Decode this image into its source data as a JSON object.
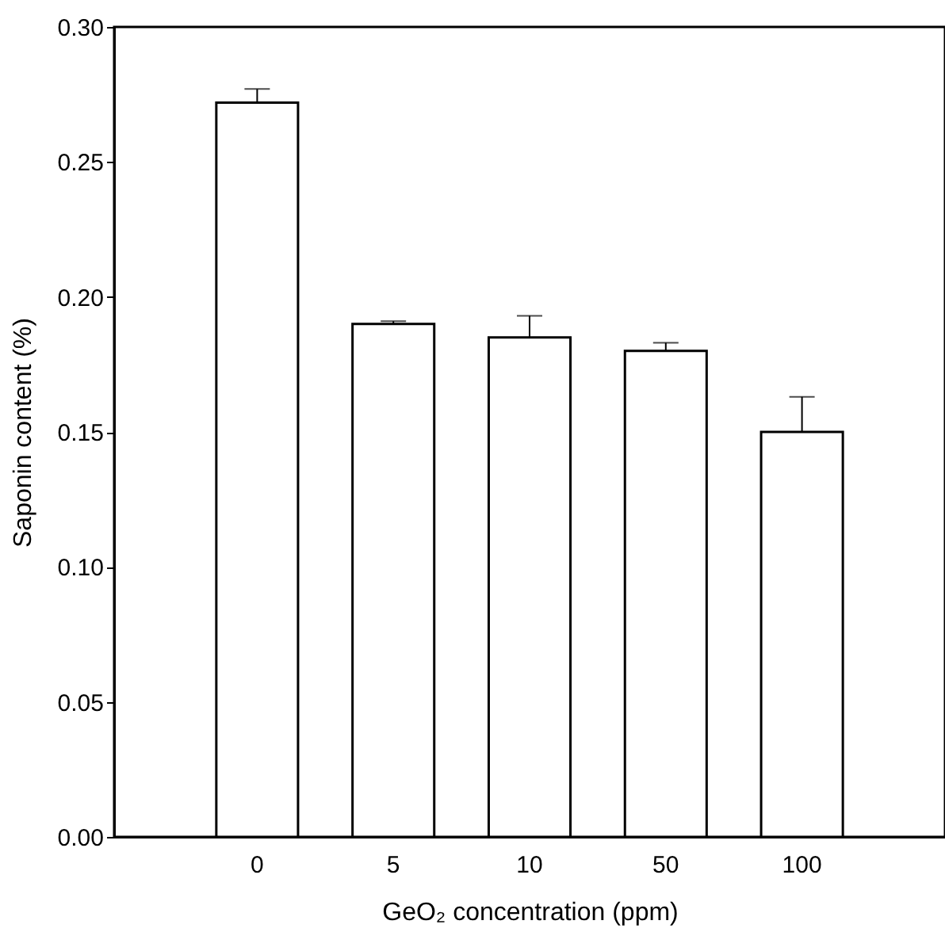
{
  "chart_data": {
    "type": "bar",
    "xlabel": "GeO₂ concentration (ppm)",
    "ylabel": "Saponin content (%)",
    "categories": [
      "0",
      "5",
      "10",
      "50",
      "100"
    ],
    "values": [
      0.272,
      0.19,
      0.185,
      0.18,
      0.15
    ],
    "errors": [
      0.005,
      0.001,
      0.008,
      0.003,
      0.013
    ],
    "color": "#ffffff",
    "ylim": [
      0,
      0.3
    ],
    "yticks": [
      {
        "value": 0,
        "label": "0.00"
      },
      0.05,
      {
        "value": 0.1,
        "label": "0.10"
      },
      0.15,
      {
        "value": 0.2,
        "label": "0.20"
      },
      0.25,
      {
        "value": 0.3,
        "label": "0.30"
      }
    ],
    "grid": false
  }
}
